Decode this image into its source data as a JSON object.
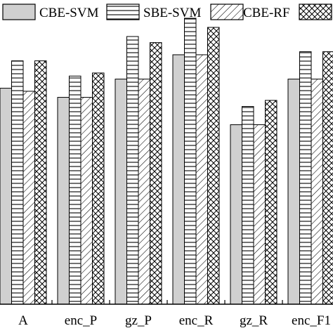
{
  "chart_data": {
    "type": "bar",
    "title": "",
    "xlabel": "",
    "ylabel": "",
    "categories": [
      "A",
      "enc_P",
      "gz_P",
      "enc_R",
      "gz_R",
      "enc_F1"
    ],
    "ylim": [
      0,
      1.0
    ],
    "grid": false,
    "legend": {
      "placement": "top",
      "columns": 4
    },
    "series": [
      {
        "name": "CBE-SVM",
        "pattern": "solid",
        "values": [
          0.71,
          0.68,
          0.74,
          0.82,
          0.59,
          0.74
        ]
      },
      {
        "name": "SBE-SVM",
        "pattern": "horizontal",
        "values": [
          0.8,
          0.75,
          0.88,
          0.94,
          0.65,
          0.83
        ]
      },
      {
        "name": "CBE-RF",
        "pattern": "diagonal",
        "values": [
          0.7,
          0.68,
          0.74,
          0.82,
          0.59,
          0.74
        ]
      },
      {
        "name": "",
        "pattern": "crosshatch",
        "values": [
          0.8,
          0.76,
          0.86,
          0.91,
          0.67,
          0.83
        ]
      }
    ],
    "colors": {
      "bar_fill": "#d0d0d0",
      "pattern_fill": "#ffffff",
      "stroke": "#000000"
    }
  }
}
